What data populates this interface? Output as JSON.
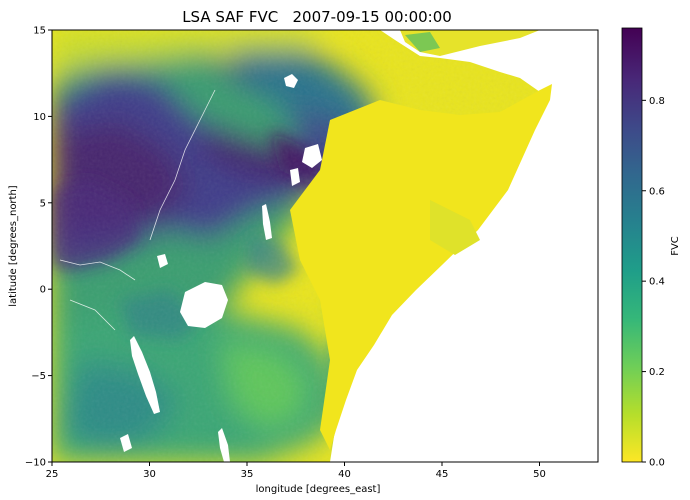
{
  "chart_data": {
    "type": "heatmap",
    "title": "LSA SAF FVC   2007-09-15 00:00:00",
    "xlabel": "longitude [degrees_east]",
    "ylabel": "latitude [degrees_north]",
    "xlim": [
      25,
      53
    ],
    "ylim": [
      -10,
      15
    ],
    "x_ticks": [
      25,
      30,
      35,
      40,
      45,
      50
    ],
    "y_ticks": [
      -10,
      -5,
      0,
      5,
      10,
      15
    ],
    "colorbar": {
      "label": "FVC",
      "range": [
        0.0,
        0.96
      ],
      "ticks": [
        0.0,
        0.2,
        0.4,
        0.6,
        0.8
      ],
      "tick_labels": [
        "0.0",
        "0.2",
        "0.4",
        "0.6",
        "0.8"
      ],
      "colormap": "viridis_r"
    },
    "colormap_stops": [
      "#fde725",
      "#b5de2b",
      "#6ece58",
      "#35b779",
      "#1f9e89",
      "#26828e",
      "#31688e",
      "#3e4989",
      "#482878",
      "#440154"
    ],
    "missing_color": "#ffffff",
    "grid": false
  },
  "labels": {
    "x_tick_labels": [
      "25",
      "30",
      "35",
      "40",
      "45",
      "50"
    ],
    "y_tick_labels": [
      "−10",
      "−5",
      "0",
      "5",
      "10",
      "15"
    ]
  }
}
